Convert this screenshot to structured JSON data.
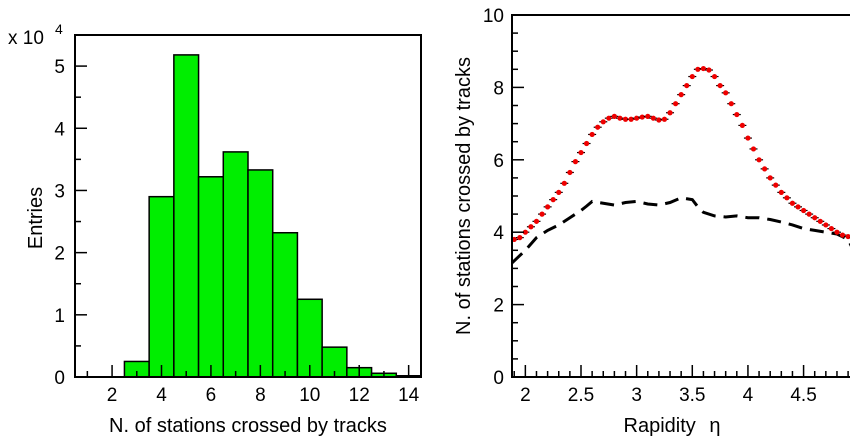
{
  "chart_data": [
    {
      "type": "bar",
      "xlabel": "N. of stations crossed by tracks",
      "ylabel": "Entries",
      "scale_label": "x 10",
      "scale_exp": "4",
      "xlim": [
        0.5,
        14.5
      ],
      "ylim": [
        0,
        5.5
      ],
      "x_ticks": [
        "2",
        "4",
        "6",
        "8",
        "10",
        "12",
        "14"
      ],
      "y_ticks": [
        "0",
        "1",
        "2",
        "3",
        "4",
        "5"
      ],
      "bin_edges": [
        2.5,
        3.5,
        4.5,
        5.5,
        6.5,
        7.5,
        8.5,
        9.5,
        10.5,
        11.5,
        12.5,
        13.5,
        14.5
      ],
      "values": [
        0.25,
        2.9,
        5.18,
        3.22,
        3.62,
        3.33,
        2.32,
        1.25,
        0.48,
        0.15,
        0.06,
        0.02
      ],
      "fill_color": "#00ee00"
    },
    {
      "type": "line",
      "xlabel": "Rapidity",
      "xlabel_symbol": "η",
      "ylabel": "N. of stations crossed by tracks",
      "xlim": [
        1.88,
        4.98
      ],
      "ylim": [
        0,
        10
      ],
      "x_ticks": [
        "2",
        "2.5",
        "3",
        "3.5",
        "4",
        "4.5"
      ],
      "y_ticks": [
        "0",
        "2",
        "4",
        "6",
        "8",
        "10"
      ],
      "series": [
        {
          "style": "points",
          "color": "#ee0000",
          "x": [
            1.9,
            1.95,
            2.0,
            2.05,
            2.1,
            2.15,
            2.2,
            2.25,
            2.3,
            2.35,
            2.4,
            2.45,
            2.5,
            2.55,
            2.6,
            2.65,
            2.7,
            2.75,
            2.8,
            2.85,
            2.9,
            2.95,
            3.0,
            3.05,
            3.1,
            3.15,
            3.2,
            3.25,
            3.3,
            3.35,
            3.4,
            3.45,
            3.5,
            3.55,
            3.6,
            3.65,
            3.7,
            3.75,
            3.8,
            3.85,
            3.9,
            3.95,
            4.0,
            4.05,
            4.1,
            4.15,
            4.2,
            4.25,
            4.3,
            4.35,
            4.4,
            4.45,
            4.5,
            4.55,
            4.6,
            4.65,
            4.7,
            4.75,
            4.8,
            4.85,
            4.9,
            4.95
          ],
          "y": [
            3.8,
            3.85,
            4.0,
            4.15,
            4.3,
            4.5,
            4.7,
            4.9,
            5.1,
            5.35,
            5.65,
            5.95,
            6.2,
            6.45,
            6.7,
            6.9,
            7.05,
            7.15,
            7.2,
            7.15,
            7.12,
            7.12,
            7.15,
            7.18,
            7.2,
            7.15,
            7.1,
            7.12,
            7.3,
            7.55,
            7.8,
            8.05,
            8.3,
            8.5,
            8.52,
            8.48,
            8.3,
            8.05,
            7.85,
            7.55,
            7.25,
            6.95,
            6.6,
            6.3,
            6.0,
            5.75,
            5.5,
            5.3,
            5.1,
            4.95,
            4.8,
            4.7,
            4.6,
            4.5,
            4.4,
            4.3,
            4.2,
            4.1,
            4.0,
            3.92,
            3.88,
            3.85
          ]
        },
        {
          "style": "dashed",
          "color": "#000000",
          "x": [
            1.88,
            2.0,
            2.1,
            2.2,
            2.3,
            2.4,
            2.5,
            2.55,
            2.6,
            2.7,
            2.8,
            2.9,
            3.0,
            3.1,
            3.2,
            3.3,
            3.4,
            3.5,
            3.55,
            3.6,
            3.7,
            3.8,
            3.9,
            4.0,
            4.1,
            4.2,
            4.3,
            4.4,
            4.5,
            4.6,
            4.7,
            4.8,
            4.9,
            4.98
          ],
          "y": [
            3.15,
            3.5,
            3.85,
            4.05,
            4.2,
            4.4,
            4.6,
            4.72,
            4.85,
            4.8,
            4.75,
            4.82,
            4.85,
            4.78,
            4.75,
            4.82,
            4.95,
            4.9,
            4.7,
            4.55,
            4.45,
            4.42,
            4.45,
            4.4,
            4.4,
            4.35,
            4.28,
            4.2,
            4.1,
            4.05,
            4.0,
            3.95,
            3.8,
            3.3
          ]
        }
      ]
    }
  ]
}
